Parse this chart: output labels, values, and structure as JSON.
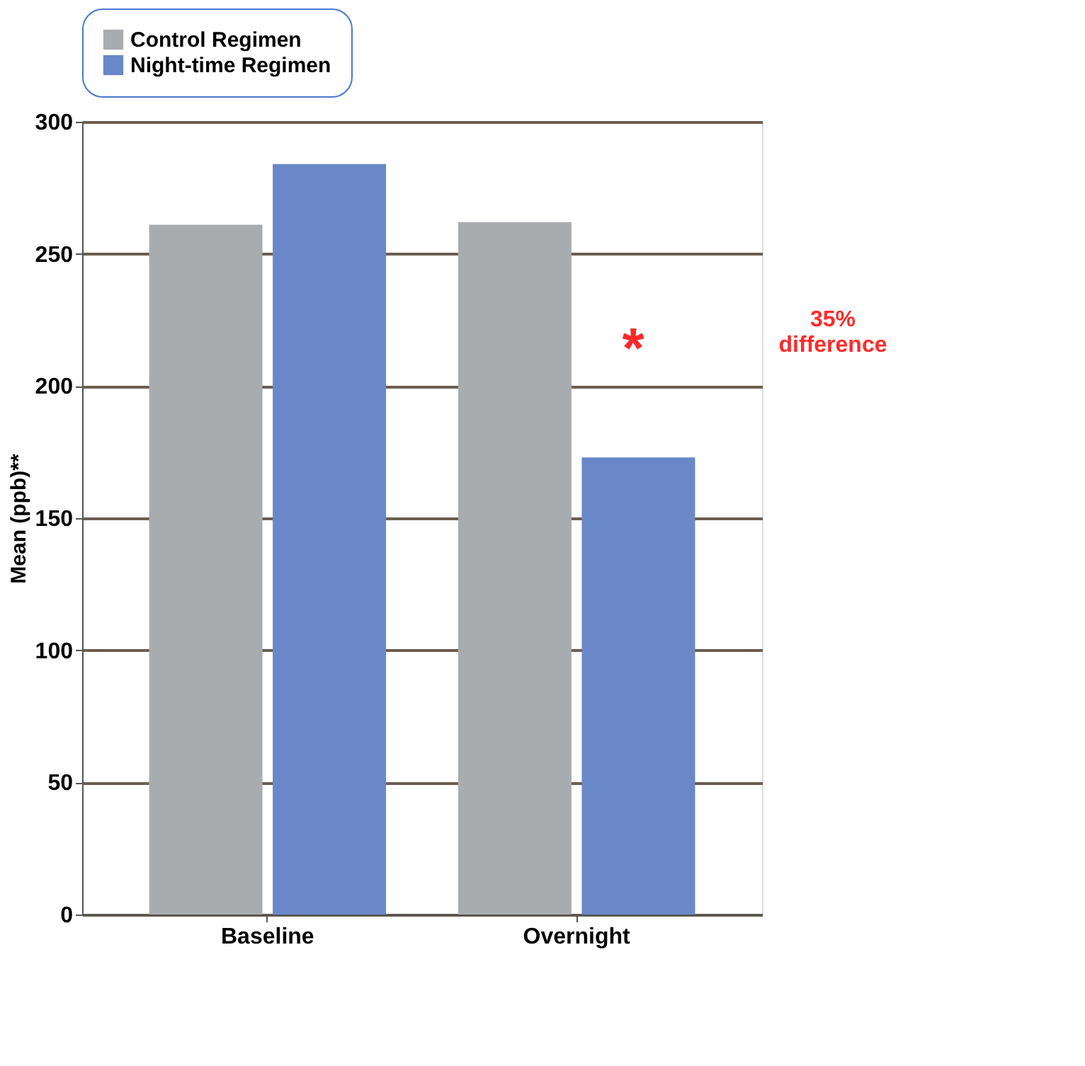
{
  "chart_data": {
    "type": "bar",
    "ylabel": "Mean (ppb)**",
    "categories": [
      "Baseline",
      "Overnight"
    ],
    "series": [
      {
        "name": "Control Regimen",
        "color": "#a9acaf",
        "values": [
          261,
          262
        ]
      },
      {
        "name": "Night-time Regimen",
        "color": "#6a88c8",
        "values": [
          284,
          173
        ]
      }
    ],
    "ylim": [
      0,
      300
    ],
    "yticks": [
      0,
      50,
      100,
      150,
      200,
      250,
      300
    ],
    "grid": "y",
    "legend": "top",
    "annotations": [
      {
        "text": "*",
        "x": "Overnight",
        "y": 220
      },
      "35% difference"
    ]
  }
}
